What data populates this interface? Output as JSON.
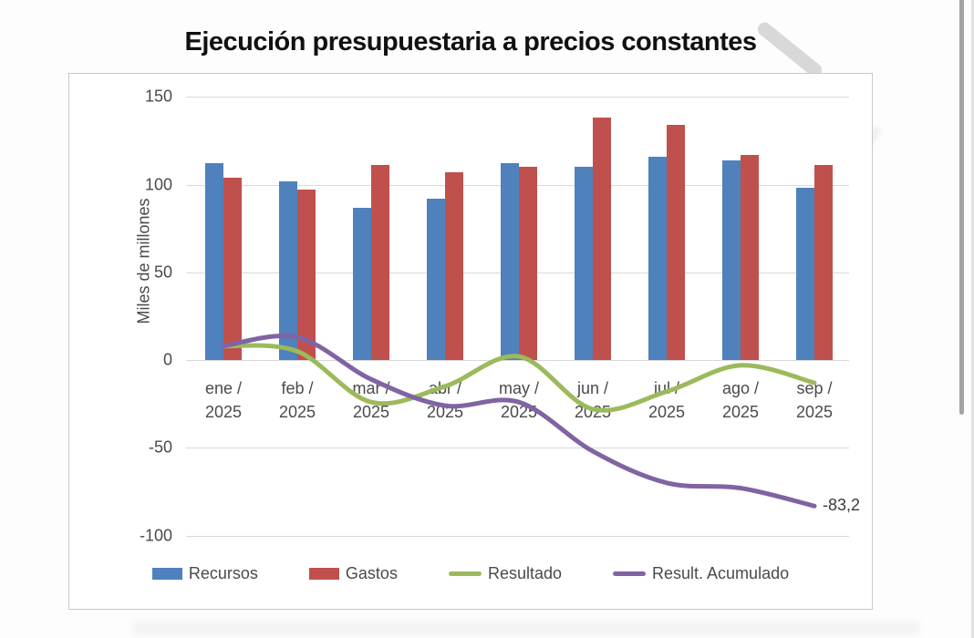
{
  "chart_data": {
    "type": "combo-bar-line",
    "title": "Ejecución presupuestaria a precios constantes",
    "ylabel": "Miles de millones",
    "xlabel": "",
    "ylim": [
      -100,
      150
    ],
    "y_ticks": [
      150,
      100,
      50,
      0,
      -50,
      -100
    ],
    "grid": true,
    "legend_position": "bottom",
    "categories": [
      "ene / 2025",
      "feb / 2025",
      "mar / 2025",
      "abr / 2025",
      "may / 2025",
      "jun / 2025",
      "jul / 2025",
      "ago / 2025",
      "sep / 2025"
    ],
    "series": [
      {
        "name": "Recursos",
        "type": "bar",
        "color": "#4f81bd",
        "values": [
          112,
          102,
          87,
          92,
          112,
          110,
          116,
          114,
          98
        ]
      },
      {
        "name": "Gastos",
        "type": "bar",
        "color": "#c0504d",
        "values": [
          104,
          97,
          111,
          107,
          110,
          138,
          134,
          117,
          111
        ]
      },
      {
        "name": "Resultado",
        "type": "line",
        "color": "#9cba5c",
        "values": [
          8,
          5,
          -24,
          -15,
          2,
          -28,
          -18,
          -3,
          -13
        ]
      },
      {
        "name": "Result. Acumulado",
        "type": "line",
        "color": "#8064a2",
        "values": [
          8,
          13,
          -11,
          -26,
          -24,
          -52,
          -70,
          -73,
          -83.2
        ]
      }
    ],
    "annotations": [
      {
        "text": "-83,2",
        "series": "Result. Acumulado",
        "x": "sep / 2025",
        "value": -83.2
      }
    ]
  },
  "window": {
    "scrollbar_thumb_color": "#a3a3a3"
  }
}
